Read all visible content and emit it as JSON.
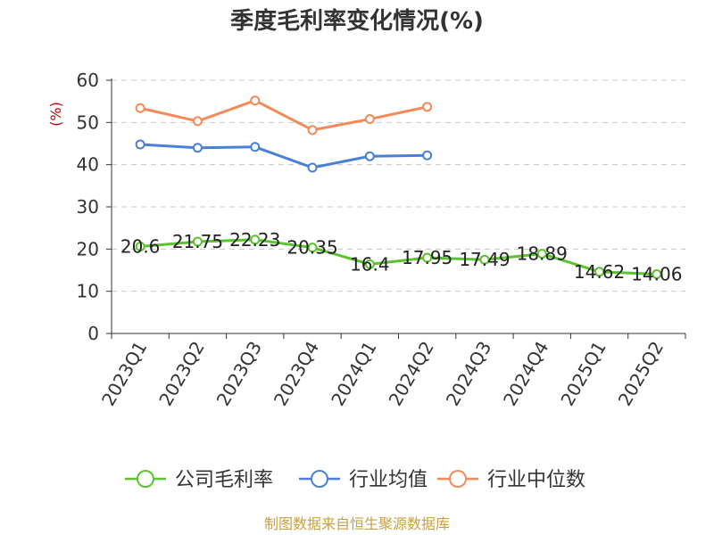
{
  "chart_data": {
    "type": "line",
    "title": "季度毛利率变化情况(%)",
    "ylabel": "(%)",
    "xlabel": "",
    "ylim": [
      0,
      60
    ],
    "yticks": [
      0,
      10,
      20,
      30,
      40,
      50,
      60
    ],
    "grid": true,
    "legend_position": "bottom",
    "categories": [
      "2023Q1",
      "2023Q2",
      "2023Q3",
      "2023Q4",
      "2024Q1",
      "2024Q2",
      "2024Q3",
      "2024Q4",
      "2025Q1",
      "2025Q2"
    ],
    "series": [
      {
        "name": "公司毛利率",
        "color": "#5cc22e",
        "values": [
          20.6,
          21.75,
          22.23,
          20.35,
          16.4,
          17.95,
          17.49,
          18.89,
          14.62,
          14.06
        ],
        "labels": [
          "20.6",
          "21.75",
          "22.23",
          "20.35",
          "16.4",
          "17.95",
          "17.49",
          "18.89",
          "14.62",
          "14.06"
        ]
      },
      {
        "name": "行业均值",
        "color": "#4a7fd9",
        "values": [
          44.8,
          44.0,
          44.2,
          39.3,
          42.0,
          42.2,
          null,
          null,
          null,
          null
        ]
      },
      {
        "name": "行业中位数",
        "color": "#f5895a",
        "values": [
          53.4,
          50.3,
          55.2,
          48.2,
          50.8,
          53.7,
          null,
          null,
          null,
          null
        ]
      }
    ],
    "source": "制图数据来自恒生聚源数据库"
  }
}
